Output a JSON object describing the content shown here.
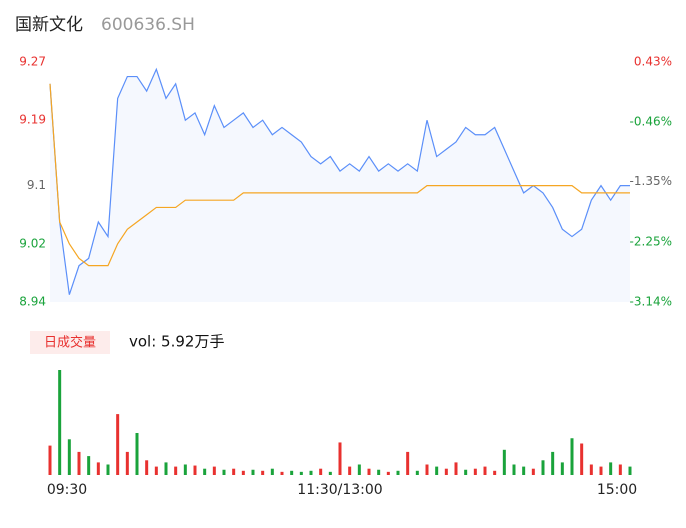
{
  "chart_data": {
    "type": "intraday",
    "title": "国新文化",
    "subtitle": "600636.SH",
    "categories": [
      "09:30",
      null,
      null,
      null,
      null,
      null,
      null,
      null,
      null,
      null,
      null,
      null,
      null,
      null,
      null,
      null,
      null,
      null,
      null,
      null,
      null,
      null,
      null,
      null,
      null,
      null,
      null,
      null,
      null,
      null,
      "11:30/13:00",
      null,
      null,
      null,
      null,
      null,
      null,
      null,
      null,
      null,
      null,
      null,
      null,
      null,
      null,
      null,
      null,
      null,
      null,
      null,
      null,
      null,
      null,
      null,
      null,
      null,
      null,
      null,
      null,
      null,
      "15:00"
    ],
    "series": [
      {
        "color": "#5b8ff9",
        "values": [
          9.24,
          9.05,
          8.95,
          8.99,
          9.0,
          9.05,
          9.03,
          9.22,
          9.25,
          9.25,
          9.23,
          9.26,
          9.22,
          9.24,
          9.19,
          9.2,
          9.17,
          9.21,
          9.18,
          9.19,
          9.2,
          9.18,
          9.19,
          9.17,
          9.18,
          9.17,
          9.16,
          9.14,
          9.13,
          9.14,
          9.12,
          9.13,
          9.12,
          9.14,
          9.12,
          9.13,
          9.12,
          9.13,
          9.12,
          9.19,
          9.14,
          9.15,
          9.16,
          9.18,
          9.17,
          9.17,
          9.18,
          9.15,
          9.12,
          9.09,
          9.1,
          9.09,
          9.07,
          9.04,
          9.03,
          9.04,
          9.08,
          9.1,
          9.08,
          9.1,
          9.1
        ]
      },
      {
        "color": "#f5a623",
        "values": [
          9.24,
          9.05,
          9.02,
          9.0,
          8.99,
          8.99,
          8.99,
          9.02,
          9.04,
          9.05,
          9.06,
          9.07,
          9.07,
          9.07,
          9.08,
          9.08,
          9.08,
          9.08,
          9.08,
          9.08,
          9.09,
          9.09,
          9.09,
          9.09,
          9.09,
          9.09,
          9.09,
          9.09,
          9.09,
          9.09,
          9.09,
          9.09,
          9.09,
          9.09,
          9.09,
          9.09,
          9.09,
          9.09,
          9.09,
          9.1,
          9.1,
          9.1,
          9.1,
          9.1,
          9.1,
          9.1,
          9.1,
          9.1,
          9.1,
          9.1,
          9.1,
          9.1,
          9.1,
          9.1,
          9.1,
          9.09,
          9.09,
          9.09,
          9.09,
          9.09,
          9.09
        ]
      }
    ],
    "ylim": [
      8.94,
      9.27
    ],
    "yticks": [
      9.27,
      9.19,
      9.1,
      9.02,
      8.94
    ],
    "ytick_colors": [
      "#e8312f",
      "#e8312f",
      "#666666",
      "#1aa33b",
      "#1aa33b"
    ],
    "y2lim": [
      -3.14,
      0.43
    ],
    "y2ticks": [
      {
        "value": 0.43,
        "label": "0.43%"
      },
      {
        "value": -0.46,
        "label": "-0.46%"
      },
      {
        "value": -1.35,
        "label": "-1.35%"
      },
      {
        "value": -2.25,
        "label": "-2.25%"
      },
      {
        "value": -3.14,
        "label": "-3.14%"
      }
    ],
    "volume": {
      "badge": "日成交量",
      "label": "vol: 5.92万手",
      "ylim": [
        0,
        100
      ],
      "values": [
        28,
        100,
        34,
        22,
        18,
        12,
        10,
        58,
        22,
        40,
        14,
        8,
        12,
        8,
        10,
        9,
        6,
        8,
        5,
        6,
        4,
        5,
        4,
        6,
        3,
        4,
        3,
        4,
        6,
        3,
        31,
        8,
        10,
        6,
        5,
        3,
        4,
        22,
        4,
        10,
        8,
        6,
        12,
        5,
        6,
        8,
        4,
        24,
        10,
        8,
        6,
        14,
        22,
        12,
        35,
        30,
        10,
        8,
        12,
        10,
        8
      ],
      "colors": [
        "#e8312f",
        "#1aa33b",
        "#1aa33b",
        "#e8312f",
        "#1aa33b",
        "#e8312f",
        "#1aa33b",
        "#e8312f",
        "#e8312f",
        "#1aa33b",
        "#e8312f",
        "#e8312f",
        "#1aa33b",
        "#e8312f",
        "#1aa33b",
        "#e8312f",
        "#1aa33b",
        "#e8312f",
        "#1aa33b",
        "#e8312f",
        "#e8312f",
        "#1aa33b",
        "#e8312f",
        "#1aa33b",
        "#e8312f",
        "#1aa33b",
        "#1aa33b",
        "#1aa33b",
        "#e8312f",
        "#1aa33b",
        "#e8312f",
        "#e8312f",
        "#1aa33b",
        "#e8312f",
        "#1aa33b",
        "#e8312f",
        "#1aa33b",
        "#e8312f",
        "#1aa33b",
        "#e8312f",
        "#1aa33b",
        "#e8312f",
        "#e8312f",
        "#1aa33b",
        "#e8312f",
        "#e8312f",
        "#e8312f",
        "#1aa33b",
        "#1aa33b",
        "#1aa33b",
        "#e8312f",
        "#1aa33b",
        "#1aa33b",
        "#1aa33b",
        "#1aa33b",
        "#e8312f",
        "#e8312f",
        "#e8312f",
        "#1aa33b",
        "#e8312f",
        "#1aa33b"
      ]
    }
  }
}
